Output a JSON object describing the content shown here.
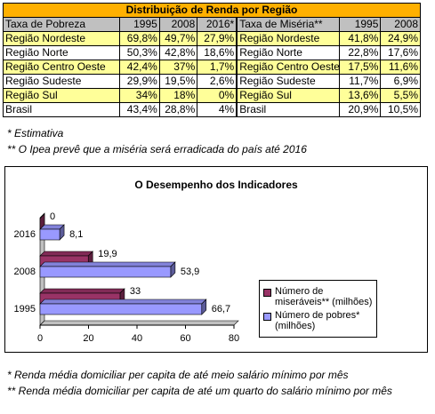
{
  "table": {
    "title": "Distribuição de Renda por Região",
    "header": [
      "Taxa de Pobreza",
      "1995",
      "2008",
      "2016*",
      "Taxa de Miséria**",
      "1995",
      "2008"
    ],
    "rows": [
      [
        "Região Nordeste",
        "69,8%",
        "49,7%",
        "27,9%",
        "Região Nordeste",
        "41,8%",
        "24,9%"
      ],
      [
        "Região Norte",
        "50,3%",
        "42,8%",
        "18,6%",
        "Região Norte",
        "22,8%",
        "17,6%"
      ],
      [
        "Região Centro Oeste",
        "42,4%",
        "37%",
        "1,7%",
        "Região Centro Oeste",
        "17,5%",
        "11,6%"
      ],
      [
        "Região Sudeste",
        "29,9%",
        "19,5%",
        "2,6%",
        "Região Sudeste",
        "11,7%",
        "6,9%"
      ],
      [
        "Região Sul",
        "34%",
        "18%",
        "0%",
        "Região Sul",
        "13,6%",
        "5,5%"
      ],
      [
        "Brasil",
        "43,4%",
        "28,8%",
        "4%",
        "Brasil",
        "20,9%",
        "10,5%"
      ]
    ]
  },
  "notes": [
    "* Estimativa",
    "** O Ipea prevê que a miséria será erradicada do país até 2016"
  ],
  "chart_data": {
    "type": "hbar3d",
    "title": "O Desempenho dos Indicadores",
    "categories": [
      "2016",
      "2008",
      "1995"
    ],
    "series": [
      {
        "name": "Número de miseráveis** (milhões)",
        "color": "#993366",
        "values": [
          0,
          19.9,
          33
        ],
        "value_labels": [
          "0",
          "19,9",
          "33"
        ]
      },
      {
        "name": "Número de pobres* (milhões)",
        "color": "#9999ff",
        "values": [
          8.1,
          53.9,
          66.7
        ],
        "value_labels": [
          "8,1",
          "53,9",
          "66,7"
        ]
      }
    ],
    "xlim": [
      0,
      80
    ],
    "xticks": [
      0,
      20,
      40,
      60,
      80
    ],
    "legend": "right"
  },
  "footnotes": [
    "* Renda média domiciliar per capita de até meio salário mínimo por mês",
    "** Renda média domiciliar per capita de até um quarto do salário mínimo por mês"
  ]
}
